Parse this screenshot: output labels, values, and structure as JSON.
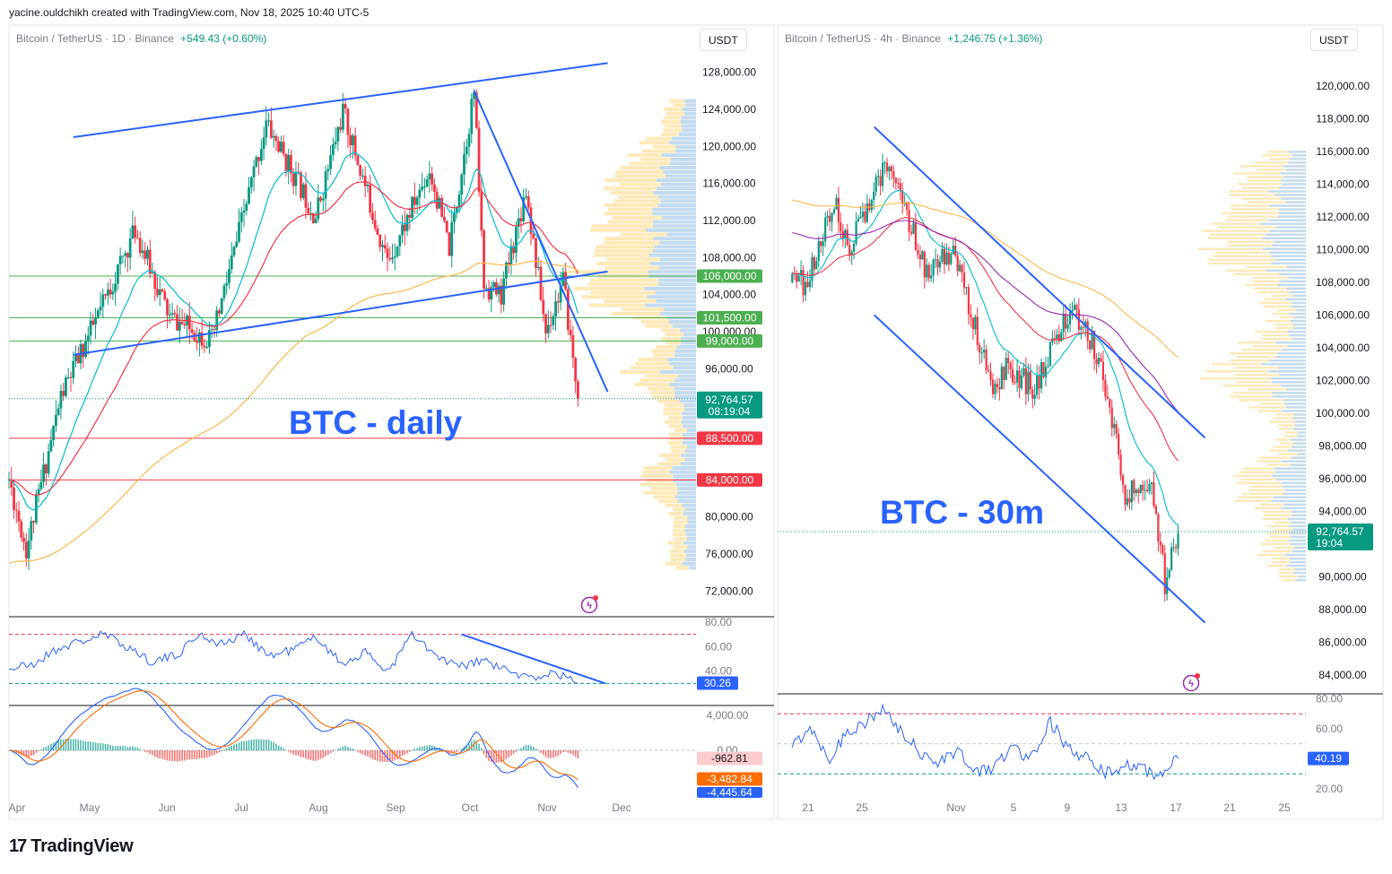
{
  "credit": "yacine.ouldchikh created with TradingView.com, Nov 18, 2025 10:40 UTC-5",
  "brand": {
    "name": "TradingView",
    "glyph": "17"
  },
  "colors": {
    "up": "#089981",
    "down": "#f23645",
    "trendline": "#2962ff",
    "rsi": "#2962ff",
    "macd": "#2962ff",
    "signal": "#ff6d00",
    "ema_fast": "#00bcd4",
    "ema_mid": "#f23645",
    "ema_slow": "#ffb74d",
    "ema_200": "#9c27b0",
    "volume_profile_up": "#bbd9f7",
    "volume_profile_down": "#ffe7b0"
  },
  "chart_data": [
    {
      "type": "candlestick",
      "header": {
        "symbol": "Bitcoin / TetherUS",
        "interval": "1D",
        "exchange": "Binance",
        "change": "+549.43 (+0.60%)"
      },
      "currency": "USDT",
      "annotation": "BTC - daily",
      "ylim": [
        70000,
        130000
      ],
      "y_ticks": [
        "128,000.00",
        "124,000.00",
        "120,000.00",
        "116,000.00",
        "112,000.00",
        "108,000.00",
        "104,000.00",
        "100,000.00",
        "96,000.00",
        "80,000.00",
        "76,000.00",
        "72,000.00"
      ],
      "x_ticks": [
        "Apr",
        "May",
        "Jun",
        "Jul",
        "Aug",
        "Sep",
        "Oct",
        "Nov",
        "Dec"
      ],
      "last_price": {
        "value": "92,764.57",
        "countdown": "08:19:04"
      },
      "levels": [
        {
          "value": 106000,
          "label": "106,000.00",
          "color": "#4caf50"
        },
        {
          "value": 101500,
          "label": "101,500.00",
          "color": "#4caf50"
        },
        {
          "value": 99000,
          "label": "99,000.00",
          "color": "#4caf50"
        },
        {
          "value": 88500,
          "label": "88,500.00",
          "color": "#f23645"
        },
        {
          "value": 84000,
          "label": "84,000.00",
          "color": "#f23645"
        }
      ],
      "trendlines": [
        {
          "from": [
            "Apr 27",
            121000
          ],
          "to": [
            "Nov 29",
            129000
          ]
        },
        {
          "from": [
            "Apr 27",
            97500
          ],
          "to": [
            "Nov 29",
            106500
          ]
        },
        {
          "from": [
            "Oct 6",
            126000
          ],
          "to": [
            "Nov 29",
            93500
          ]
        }
      ],
      "key_prices": [
        {
          "date": "Apr 1",
          "price": 84000
        },
        {
          "date": "Apr 8",
          "price": 76500
        },
        {
          "date": "Apr 22",
          "price": 93000
        },
        {
          "date": "May 10",
          "price": 103500
        },
        {
          "date": "May 22",
          "price": 111000
        },
        {
          "date": "Jun 5",
          "price": 101500
        },
        {
          "date": "Jun 22",
          "price": 99000
        },
        {
          "date": "Jul 14",
          "price": 122500
        },
        {
          "date": "Aug 3",
          "price": 112500
        },
        {
          "date": "Aug 14",
          "price": 123800
        },
        {
          "date": "Sep 1",
          "price": 107500
        },
        {
          "date": "Sep 18",
          "price": 117500
        },
        {
          "date": "Sep 26",
          "price": 109000
        },
        {
          "date": "Oct 6",
          "price": 126000
        },
        {
          "date": "Oct 10",
          "price": 105000
        },
        {
          "date": "Oct 17",
          "price": 104000
        },
        {
          "date": "Oct 27",
          "price": 115500
        },
        {
          "date": "Nov 4",
          "price": 100000
        },
        {
          "date": "Nov 11",
          "price": 105500
        },
        {
          "date": "Nov 17",
          "price": 92764.57
        }
      ],
      "rsi": {
        "ylim": [
          20,
          80
        ],
        "y_ticks": [
          "80.00",
          "60.00",
          "40.00"
        ],
        "levels": [
          70,
          30
        ],
        "value": "30.26",
        "key_values": [
          42,
          45,
          58,
          64,
          70,
          60,
          48,
          52,
          70,
          62,
          70,
          52,
          58,
          68,
          46,
          55,
          40,
          70,
          52,
          43,
          49,
          40,
          34,
          39,
          30
        ]
      },
      "macd": {
        "y_ticks": [
          "4,000.00",
          "0.00"
        ],
        "macd_value": "-962.81",
        "signal_value": "-3,482.84",
        "hist_value": "-4,445.64"
      }
    },
    {
      "type": "candlestick",
      "header": {
        "symbol": "Bitcoin / TetherUS",
        "interval": "4h",
        "exchange": "Binance",
        "change": "+1,246.75 (+1.36%)"
      },
      "currency": "USDT",
      "annotation": "BTC - 30m",
      "ylim": [
        82500,
        122000
      ],
      "y_ticks": [
        "120,000.00",
        "118,000.00",
        "116,000.00",
        "114,000.00",
        "112,000.00",
        "110,000.00",
        "108,000.00",
        "106,000.00",
        "104,000.00",
        "102,000.00",
        "100,000.00",
        "98,000.00",
        "96,000.00",
        "94,000.00",
        "90,000.00",
        "88,000.00",
        "86,000.00",
        "84,000.00"
      ],
      "x_ticks": [
        "21",
        "25",
        "Nov",
        "5",
        "9",
        "13",
        "17",
        "21",
        "25"
      ],
      "last_price": {
        "value": "92,764.57",
        "countdown": "19:04"
      },
      "trendlines": [
        {
          "from": [
            "Oct 26",
            117500
          ],
          "to": [
            "Nov 20",
            98500
          ]
        },
        {
          "from": [
            "Oct 26",
            106000
          ],
          "to": [
            "Nov 20",
            87200
          ]
        }
      ],
      "key_prices": [
        {
          "date": "Oct 21",
          "price": 108000
        },
        {
          "date": "Oct 23",
          "price": 113000
        },
        {
          "date": "Oct 24",
          "price": 110000
        },
        {
          "date": "Oct 27",
          "price": 115500
        },
        {
          "date": "Oct 30",
          "price": 108500
        },
        {
          "date": "Nov 1",
          "price": 110000
        },
        {
          "date": "Nov 4",
          "price": 101000
        },
        {
          "date": "Nov 5",
          "price": 103000
        },
        {
          "date": "Nov 7",
          "price": 101500
        },
        {
          "date": "Nov 10",
          "price": 106500
        },
        {
          "date": "Nov 12",
          "price": 103500
        },
        {
          "date": "Nov 14",
          "price": 95000
        },
        {
          "date": "Nov 16",
          "price": 95800
        },
        {
          "date": "Nov 17",
          "price": 89500
        },
        {
          "date": "Nov 18",
          "price": 92764.57
        }
      ],
      "rsi": {
        "ylim": [
          15,
          80
        ],
        "y_ticks": [
          "80.00",
          "60.00",
          "20.00"
        ],
        "levels": [
          70,
          30
        ],
        "value": "40.19",
        "key_values": [
          48,
          62,
          40,
          58,
          65,
          72,
          56,
          44,
          38,
          46,
          30,
          35,
          48,
          40,
          66,
          46,
          40,
          30,
          36,
          33,
          29,
          40
        ]
      }
    }
  ]
}
